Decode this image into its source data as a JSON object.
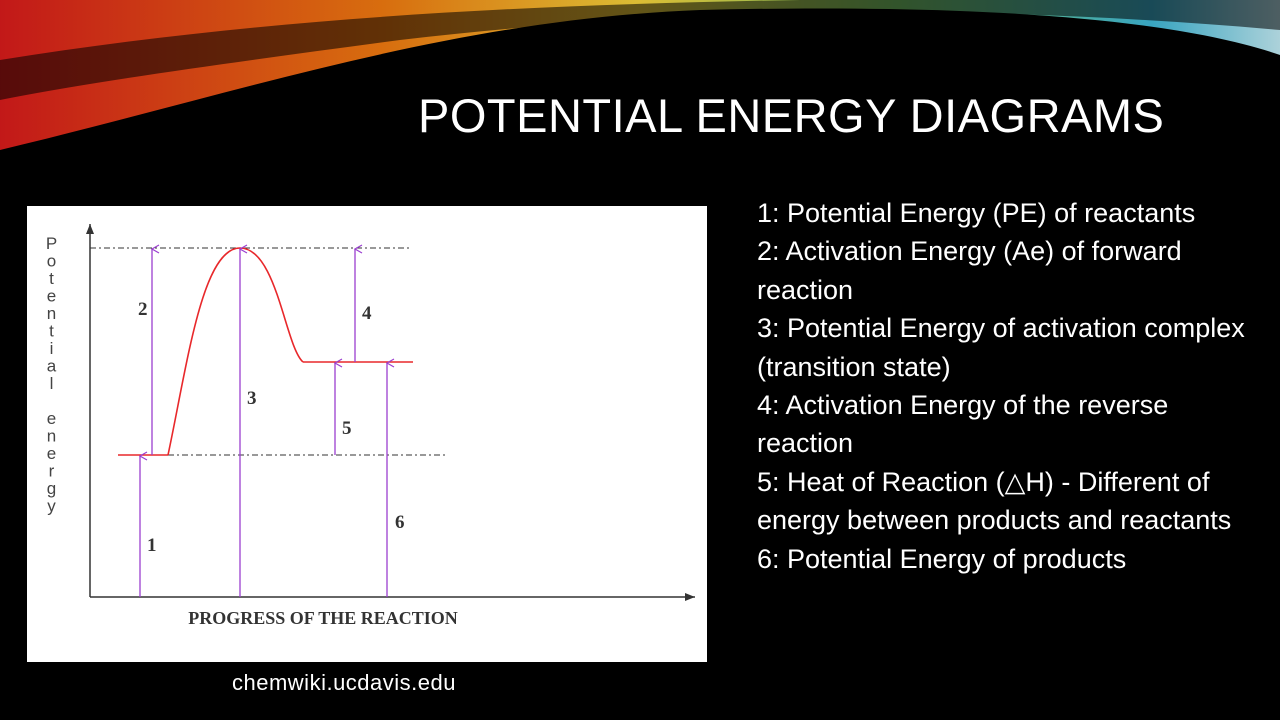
{
  "title": "POTENTIAL ENERGY DIAGRAMS",
  "diagram": {
    "y_axis_label": "Potential energy",
    "x_axis_label": "PROGRESS OF THE REACTION",
    "markers": [
      "1",
      "2",
      "3",
      "4",
      "5",
      "6"
    ]
  },
  "legend": [
    "1: Potential Energy (PE) of reactants",
    "2: Activation Energy (Ae) of forward reaction",
    "3: Potential Energy  of activation complex (transition state)",
    "4: Activation Energy of the reverse reaction",
    "5: Heat of Reaction (△H) - Different of energy between products and reactants",
    "6: Potential Energy of products"
  ],
  "source": "chemwiki.ucdavis.edu"
}
